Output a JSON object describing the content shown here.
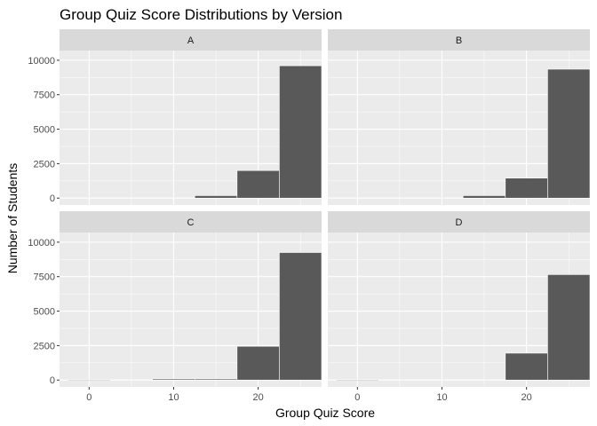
{
  "chart_data": {
    "type": "bar",
    "title": "Group Quiz Score Distributions by Version",
    "xlabel": "Group Quiz Score",
    "ylabel": "Number of Students",
    "xlim": [
      -3.5,
      27.5
    ],
    "ylim": [
      -500,
      10700
    ],
    "x_ticks": [
      0,
      10,
      20
    ],
    "y_ticks": [
      0,
      2500,
      5000,
      7500,
      10000
    ],
    "y_tick_labels": [
      "0",
      "2500",
      "5000",
      "7500",
      "10000"
    ],
    "bin_width": 5,
    "bin_centers": [
      0,
      5,
      10,
      15,
      20,
      25
    ],
    "grid": true,
    "facets": [
      {
        "label": "A",
        "values": [
          0,
          0,
          0,
          180,
          2000,
          9600
        ]
      },
      {
        "label": "B",
        "values": [
          0,
          0,
          0,
          180,
          1450,
          9350
        ]
      },
      {
        "label": "C",
        "values": [
          20,
          0,
          80,
          80,
          2450,
          9250
        ]
      },
      {
        "label": "D",
        "values": [
          25,
          0,
          0,
          0,
          1950,
          7650
        ]
      }
    ],
    "colors": {
      "bar_fill": "#595959",
      "bar_outline": "#ffffff",
      "panel_bg": "#ebebeb",
      "strip_bg": "#d9d9d9",
      "grid": "#ffffff",
      "tick_text": "#4d4d4d"
    }
  }
}
